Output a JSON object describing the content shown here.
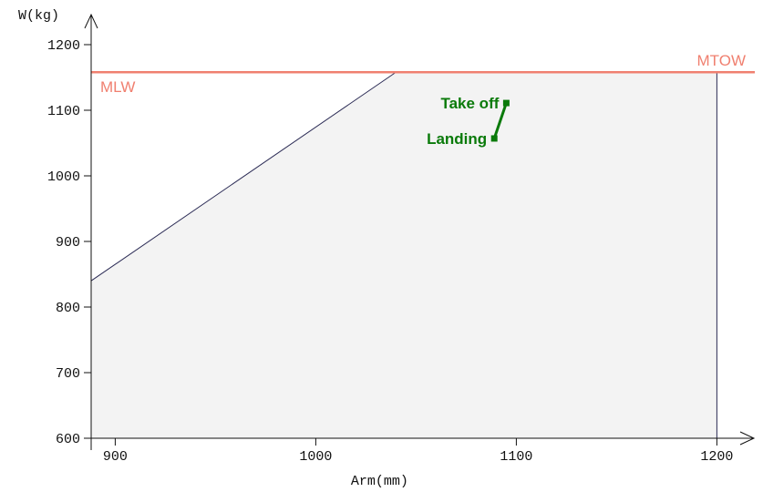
{
  "chart_data": {
    "type": "line",
    "xlabel": "Arm(mm)",
    "ylabel": "W(kg)",
    "xlim": [
      888,
      1212
    ],
    "ylim": [
      600,
      1245
    ],
    "x_ticks": [
      900,
      1000,
      1100,
      1200
    ],
    "y_ticks": [
      600,
      700,
      800,
      900,
      1000,
      1100,
      1200
    ],
    "grid": false,
    "envelope": {
      "points": [
        [
          888,
          840
        ],
        [
          1040,
          1158
        ],
        [
          1200,
          1158
        ],
        [
          1200,
          600
        ],
        [
          888,
          600
        ]
      ],
      "fill": "#f3f3f3",
      "stroke": "#2b2b55"
    },
    "limits": [
      {
        "label": "MTOW",
        "y": 1158,
        "color": "#f08070",
        "label_position": "right"
      },
      {
        "label": "MLW",
        "y": 1158,
        "color": "#f08070",
        "label_position": "left"
      }
    ],
    "cg_path": {
      "color": "#0a7a0a",
      "points": [
        {
          "label": "Take off",
          "x": 1095,
          "y": 1111
        },
        {
          "label": "Landing",
          "x": 1089,
          "y": 1057
        }
      ]
    }
  }
}
